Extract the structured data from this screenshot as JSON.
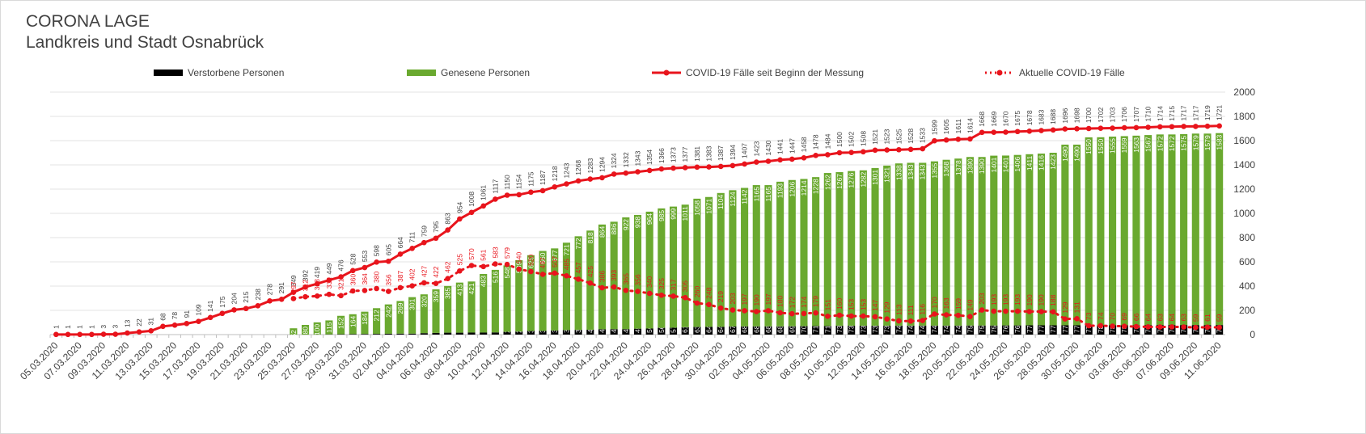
{
  "chart_data": {
    "type": "combo",
    "title": "CORONA LAGE",
    "subtitle": "Landkreis und Stadt Osnabrück",
    "legend": "top",
    "grid": true,
    "categories": [
      "05.03.2020",
      null,
      "07.03.2020",
      null,
      "09.03.2020",
      null,
      "11.03.2020",
      null,
      "13.03.2020",
      null,
      "15.03.2020",
      null,
      "17.03.2020",
      null,
      "19.03.2020",
      null,
      "21.03.2020",
      null,
      "23.03.2020",
      null,
      "25.03.2020",
      null,
      "27.03.2020",
      null,
      "29.03.2020",
      null,
      "31.03.2020",
      null,
      "02.04.2020",
      null,
      "04.04.2020",
      null,
      "06.04.2020",
      null,
      "08.04.2020",
      null,
      "10.04.2020",
      null,
      "12.04.2020",
      null,
      "14.04.2020",
      null,
      "16.04.2020",
      null,
      "18.04.2020",
      null,
      "20.04.2020",
      null,
      "22.04.2020",
      null,
      "24.04.2020",
      null,
      "26.04.2020",
      null,
      "28.04.2020",
      null,
      "30.04.2020",
      null,
      "02.05.2020",
      null,
      "04.05.2020",
      null,
      "06.05.2020",
      null,
      "08.05.2020",
      null,
      "10.05.2020",
      null,
      "12.05.2020",
      null,
      "14.05.2020",
      null,
      "16.05.2020",
      null,
      "18.05.2020",
      null,
      "20.05.2020",
      null,
      "22.05.2020",
      null,
      "24.05.2020",
      null,
      "26.05.2020",
      null,
      "28.05.2020",
      null,
      "30.05.2020",
      null,
      "01.06.2020",
      null,
      "03.06.2020",
      null,
      "05.06.2020",
      null,
      "07.06.2020",
      null,
      "09.06.2020",
      null,
      "11.06.2020"
    ],
    "ylim": [
      0,
      2000
    ],
    "yticks": [
      0,
      200,
      400,
      600,
      800,
      1000,
      1200,
      1400,
      1600,
      1800,
      2000
    ],
    "series": [
      {
        "name": "Verstorbene Personen",
        "type": "bar",
        "color": "#000000",
        "values": [
          null,
          null,
          null,
          null,
          null,
          null,
          null,
          null,
          null,
          null,
          null,
          null,
          null,
          null,
          null,
          null,
          null,
          null,
          null,
          null,
          null,
          null,
          1,
          2,
          3,
          4,
          5,
          6,
          7,
          8,
          8,
          12,
          14,
          16,
          16,
          17,
          17,
          18,
          23,
          25,
          30,
          30,
          34,
          37,
          39,
          40,
          44,
          45,
          45,
          49,
          50,
          56,
          57,
          61,
          63,
          64,
          64,
          67,
          68,
          68,
          68,
          68,
          69,
          70,
          71,
          71,
          73,
          73,
          73,
          73,
          73,
          74,
          74,
          74,
          74,
          74,
          74,
          75,
          75,
          75,
          76,
          76,
          77,
          77,
          77,
          77,
          77,
          77,
          78,
          78,
          78,
          78,
          79,
          79,
          79,
          79,
          79,
          79,
          79
        ]
      },
      {
        "name": "Genesene Personen",
        "type": "bar",
        "color": "#6aa92f",
        "values": [
          null,
          null,
          null,
          null,
          null,
          null,
          null,
          null,
          null,
          null,
          null,
          null,
          null,
          null,
          null,
          null,
          null,
          null,
          null,
          null,
          52,
          80,
          100,
          115,
          152,
          164,
          184,
          212,
          242,
          269,
          301,
          320,
          359,
          385,
          413,
          421,
          483,
          516,
          548,
          589,
          625,
          660,
          677,
          721,
          772,
          818,
          864,
          886,
          922,
          938,
          964,
          985,
          999,
          1011,
          1058,
          1071,
          1104,
          1124,
          1142,
          1165,
          1165,
          1193,
          1206,
          1214,
          1228,
          1262,
          1267,
          1276,
          1282,
          1301,
          1321,
          1338,
          1343,
          1343,
          1355,
          1368,
          1378,
          1390,
          1390,
          1401,
          1401,
          1406,
          1411,
          1416,
          1423,
          1490,
          1490,
          1550,
          1550,
          1555,
          1559,
          1563,
          1567,
          1572,
          1572,
          1575,
          1579,
          1579,
          1583
        ]
      },
      {
        "name": "COVID-19 Fälle seit Beginn der Messung",
        "type": "line",
        "color": "#e8141c",
        "values": [
          1,
          1,
          1,
          1,
          3,
          3,
          13,
          22,
          31,
          68,
          78,
          91,
          109,
          141,
          175,
          204,
          215,
          238,
          278,
          291,
          349,
          392,
          419,
          449,
          476,
          528,
          553,
          598,
          605,
          664,
          711,
          759,
          795,
          863,
          954,
          1008,
          1061,
          1117,
          1150,
          1154,
          1175,
          1187,
          1218,
          1243,
          1268,
          1283,
          1294,
          1324,
          1332,
          1343,
          1354,
          1366,
          1373,
          1377,
          1381,
          1383,
          1387,
          1394,
          1407,
          1423,
          1430,
          1441,
          1447,
          1458,
          1478,
          1484,
          1500,
          1502,
          1508,
          1521,
          1523,
          1525,
          1528,
          1533,
          1599,
          1605,
          1611,
          1614,
          1668,
          1669,
          1670,
          1675,
          1678,
          1683,
          1688,
          1696,
          1698,
          1700,
          1702,
          1703,
          1706,
          1707,
          1710,
          1714,
          1715,
          1717,
          1717,
          1719,
          1721
        ]
      },
      {
        "name": "Aktuelle COVID-19 Fälle",
        "type": "line",
        "style": "dotted",
        "color": "#e8141c",
        "values": [
          null,
          null,
          null,
          null,
          null,
          null,
          null,
          null,
          null,
          null,
          null,
          null,
          null,
          null,
          null,
          null,
          null,
          null,
          null,
          null,
          297,
          312,
          318,
          332,
          321,
          360,
          364,
          380,
          356,
          387,
          402,
          427,
          422,
          462,
          525,
          570,
          561,
          583,
          579,
          540,
          520,
          497,
          507,
          485,
          457,
          425,
          386,
          393,
          365,
          356,
          340,
          325,
          317,
          305,
          260,
          248,
          219,
          203,
          197,
          190,
          197,
          180,
          172,
          174,
          179,
          151,
          160,
          153,
          153,
          147,
          129,
          113,
          111,
          116,
          170,
          163,
          159,
          149,
          203,
          193,
          193,
          193,
          190,
          190,
          188,
          129,
          131,
          73,
          74,
          70,
          69,
          66,
          64,
          63,
          64,
          63,
          59,
          61,
          59
        ]
      }
    ]
  }
}
